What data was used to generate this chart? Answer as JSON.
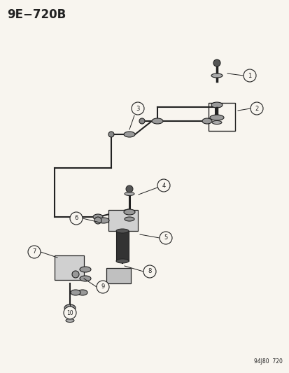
{
  "title": "9E−720B",
  "footer": "94J80  720",
  "bg_color": "#f8f5ef",
  "line_color": "#222222",
  "fig_width": 4.14,
  "fig_height": 5.33,
  "dpi": 100
}
